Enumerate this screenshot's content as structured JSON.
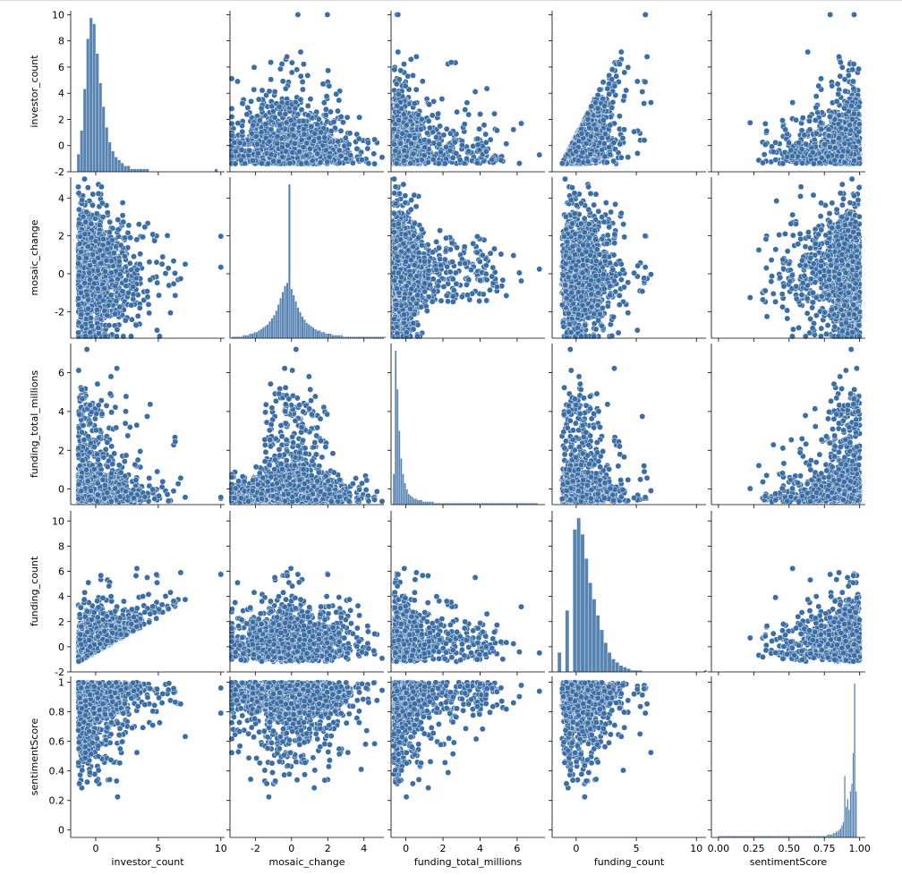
{
  "chart_data": {
    "type": "pairplot",
    "marker_color": "#3b6ea5",
    "marker_edge_color": "#ffffff",
    "variables": [
      "investor_count",
      "mosaic_change",
      "funding_total_millions",
      "funding_count",
      "sentimentScore"
    ],
    "axes": {
      "investor_count": {
        "label": "investor_count",
        "range": [
          -2,
          10.3
        ],
        "ticks": [
          -2,
          0,
          2,
          4,
          6,
          8,
          10
        ],
        "x_ticks": [
          0,
          5,
          10
        ]
      },
      "mosaic_change": {
        "label": "mosaic_change",
        "range": [
          -3.4,
          5.1
        ],
        "ticks": [
          -2,
          0,
          2,
          4
        ],
        "x_ticks": [
          -2,
          0,
          2,
          4
        ]
      },
      "funding_total_millions": {
        "label": "funding_total_millions",
        "range": [
          -0.8,
          7.5
        ],
        "ticks": [
          0,
          2,
          4,
          6
        ],
        "x_ticks": [
          0,
          2,
          4,
          6
        ]
      },
      "funding_count": {
        "label": "funding_count",
        "range": [
          -2,
          10.8
        ],
        "ticks": [
          -2,
          0,
          2,
          4,
          6,
          8,
          10
        ],
        "x_ticks": [
          0,
          5,
          10
        ]
      },
      "sentimentScore": {
        "label": "sentimentScore",
        "range": [
          -0.05,
          1.04
        ],
        "ticks": [
          0.0,
          0.2,
          0.4,
          0.6,
          0.8,
          1.0
        ],
        "x_ticks": [
          0.0,
          0.25,
          0.5,
          0.75,
          1.0
        ],
        "x_tick_labels": [
          "0.00",
          "0.25",
          "0.50",
          "0.75",
          "1.00"
        ]
      }
    },
    "histograms": {
      "investor_count": {
        "bin_start": -1.5,
        "bin_width": 0.25,
        "counts": [
          6,
          14,
          28,
          45,
          52,
          50,
          40,
          30,
          22,
          15,
          10,
          7,
          5,
          4,
          3,
          2,
          2,
          1,
          1,
          1,
          1,
          1,
          1,
          0,
          0,
          0,
          0,
          0,
          0,
          0,
          0,
          0,
          0,
          0,
          0,
          0,
          0,
          0,
          0,
          0,
          0,
          0,
          0,
          0,
          1
        ]
      },
      "mosaic_change": {
        "bin_start": -3.3,
        "bin_width": 0.12,
        "counts": [
          1,
          1,
          1,
          1,
          1,
          2,
          2,
          2,
          3,
          3,
          4,
          4,
          5,
          6,
          7,
          8,
          9,
          11,
          13,
          15,
          18,
          22,
          26,
          30,
          34,
          36,
          100,
          32,
          28,
          24,
          20,
          17,
          14,
          12,
          10,
          9,
          8,
          7,
          6,
          5,
          5,
          4,
          4,
          3,
          3,
          3,
          2,
          2,
          2,
          2,
          2,
          1,
          1,
          1,
          1,
          1,
          1,
          1,
          1,
          1,
          1,
          1,
          1,
          1,
          1,
          1,
          1,
          1,
          1,
          1,
          1
        ]
      },
      "funding_total_millions": {
        "bin_start": -0.7,
        "bin_width": 0.1,
        "counts": [
          20,
          100,
          75,
          48,
          30,
          20,
          14,
          10,
          7,
          6,
          5,
          4,
          4,
          3,
          3,
          3,
          2,
          2,
          2,
          2,
          2,
          2,
          1,
          1,
          1,
          1,
          1,
          1,
          1,
          1,
          1,
          1,
          1,
          1,
          1,
          1,
          1,
          1,
          1,
          1,
          1,
          1,
          1,
          1,
          1,
          1,
          1,
          1,
          1,
          1,
          1,
          1,
          1,
          1,
          1,
          1,
          1,
          1,
          1,
          1,
          1,
          1,
          1,
          1,
          1,
          1,
          1,
          1,
          1,
          1,
          1,
          1,
          1,
          1,
          1,
          1,
          1,
          1
        ]
      },
      "funding_count": {
        "bin_start": -1.55,
        "bin_width": 0.32,
        "counts": [
          12,
          0,
          38,
          0,
          88,
          95,
          85,
          70,
          55,
          45,
          35,
          26,
          18,
          12,
          8,
          6,
          4,
          3,
          2,
          1,
          1,
          1,
          0,
          0,
          0,
          0,
          0,
          0,
          0,
          0,
          0,
          0,
          0,
          0,
          0,
          0,
          0,
          0,
          1
        ]
      },
      "sentimentScore": {
        "bin_start": 0.0,
        "bin_width": 0.01,
        "counts": [
          1,
          1,
          1,
          1,
          1,
          1,
          1,
          1,
          1,
          1,
          1,
          1,
          1,
          1,
          1,
          1,
          1,
          1,
          1,
          1,
          1,
          1,
          1,
          1,
          1,
          1,
          1,
          1,
          1,
          1,
          1,
          1,
          1,
          1,
          1,
          1,
          1,
          1,
          1,
          1,
          1,
          1,
          1,
          1,
          1,
          1,
          1,
          1,
          1,
          1,
          1,
          1,
          1,
          1,
          1,
          1,
          1,
          1,
          1,
          1,
          1,
          1,
          1,
          1,
          1,
          1,
          1,
          1,
          1,
          1,
          1,
          1,
          1,
          1,
          1,
          1,
          1,
          2,
          2,
          2,
          2,
          3,
          3,
          4,
          4,
          5,
          6,
          8,
          10,
          40,
          20,
          25,
          18,
          30,
          35,
          55,
          100,
          30
        ]
      }
    }
  }
}
